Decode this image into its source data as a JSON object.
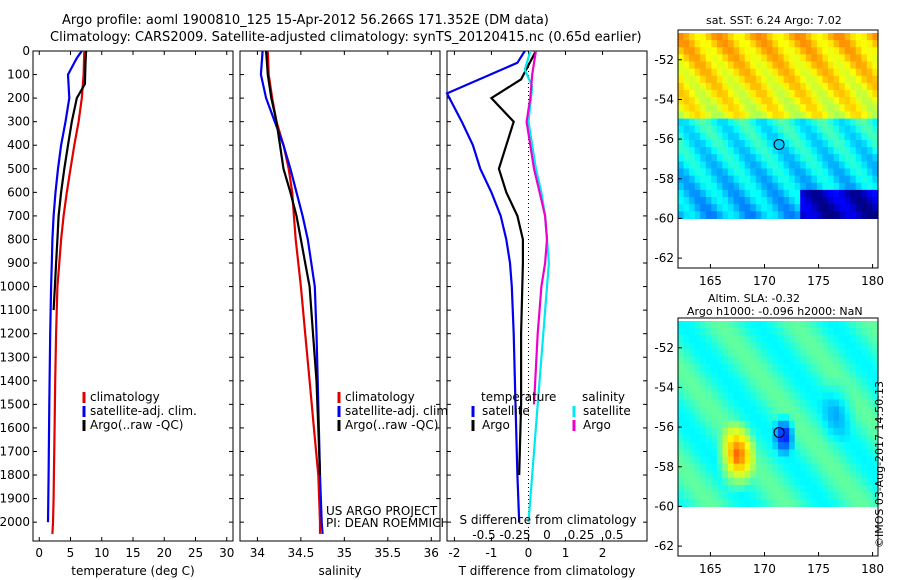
{
  "header": {
    "title_line1": "Argo profile: aoml 1900810_125 15-Apr-2012 56.266S 171.352E (DM data)",
    "title_line2": "Climatology: CARS2009. Satellite-adjusted climatology: synTS_20120415.nc (0.65d earlier)"
  },
  "colors": {
    "clim": "#e00000",
    "sat": "#0000ee",
    "argo": "#000000",
    "sal_sat": "#00e8f0",
    "sal_argo": "#ee00cc"
  },
  "chart_data": [
    {
      "type": "line",
      "id": "temperature",
      "xlabel": "temperature (deg C)",
      "ylabel": "",
      "xlim": [
        -1,
        31
      ],
      "ylim": [
        2080,
        0
      ],
      "xticks": [
        0,
        5,
        10,
        15,
        20,
        25,
        30
      ],
      "yticks": [
        0,
        100,
        200,
        300,
        400,
        500,
        600,
        700,
        800,
        900,
        1000,
        1100,
        1200,
        1300,
        1400,
        1500,
        1600,
        1700,
        1800,
        1900,
        2000
      ],
      "legend": [
        "climatology",
        "satellite-adj. clim.",
        "Argo(..raw -QC)"
      ],
      "series": [
        {
          "name": "climatology",
          "color": "#e00000",
          "x": [
            7.2,
            7.1,
            6.8,
            6.3,
            5.6,
            5.0,
            4.4,
            3.9,
            3.5,
            3.2,
            2.9,
            2.7,
            2.55,
            2.45,
            2.35,
            2.3,
            2.2,
            2.1
          ],
          "y": [
            0,
            100,
            200,
            300,
            400,
            500,
            600,
            700,
            800,
            900,
            1000,
            1200,
            1400,
            1600,
            1800,
            1900,
            2000,
            2050
          ]
        },
        {
          "name": "satellite-adj. clim.",
          "color": "#0000ee",
          "x": [
            6.8,
            6.0,
            4.6,
            4.8,
            4.2,
            3.5,
            3.0,
            2.6,
            2.3,
            2.1,
            2.0,
            1.9,
            1.75,
            1.6,
            1.5,
            1.4
          ],
          "y": [
            0,
            30,
            100,
            200,
            300,
            400,
            500,
            600,
            700,
            800,
            900,
            1000,
            1200,
            1500,
            1800,
            2000
          ]
        },
        {
          "name": "Argo(..raw -QC)",
          "color": "#000000",
          "x": [
            7.5,
            7.4,
            7.3,
            6.0,
            5.2,
            4.6,
            4.0,
            3.5,
            3.1,
            2.9,
            2.7,
            2.5,
            2.3
          ],
          "y": [
            0,
            50,
            140,
            200,
            300,
            400,
            500,
            600,
            700,
            800,
            900,
            1000,
            1100
          ]
        }
      ]
    },
    {
      "type": "line",
      "id": "salinity",
      "xlabel": "salinity",
      "xlim": [
        33.8,
        36.1
      ],
      "ylim": [
        2080,
        0
      ],
      "xticks": [
        34,
        34.5,
        35,
        35.5,
        36
      ],
      "legend": [
        "climatology",
        "satellite-adj. clim.",
        "Argo(..raw -QC)"
      ],
      "annotation": [
        "US ARGO PROJECT",
        "PI: DEAN ROEMMICH"
      ],
      "series": [
        {
          "name": "climatology",
          "color": "#e00000",
          "x": [
            34.12,
            34.13,
            34.17,
            34.22,
            34.3,
            34.36,
            34.4,
            34.42,
            34.44,
            34.47,
            34.5,
            34.55,
            34.6,
            34.65,
            34.7,
            34.72,
            34.72
          ],
          "y": [
            0,
            100,
            200,
            300,
            400,
            500,
            600,
            700,
            800,
            900,
            1000,
            1200,
            1400,
            1600,
            1800,
            2000,
            2050
          ]
        },
        {
          "name": "satellite-adj. clim.",
          "color": "#0000ee",
          "x": [
            34.06,
            34.04,
            34.1,
            34.2,
            34.3,
            34.38,
            34.45,
            34.52,
            34.58,
            34.62,
            34.66,
            34.68,
            34.7,
            34.72,
            34.74,
            34.75
          ],
          "y": [
            0,
            100,
            200,
            300,
            400,
            500,
            600,
            700,
            800,
            900,
            1000,
            1200,
            1500,
            1800,
            2000,
            2050
          ]
        },
        {
          "name": "Argo(..raw -QC)",
          "color": "#000000",
          "x": [
            34.1,
            34.12,
            34.16,
            34.22,
            34.26,
            34.3,
            34.38,
            34.45,
            34.5,
            34.55,
            34.6,
            34.64,
            34.68,
            34.7,
            34.72
          ],
          "y": [
            0,
            100,
            200,
            300,
            400,
            500,
            600,
            700,
            800,
            900,
            1000,
            1200,
            1400,
            1600,
            1800
          ]
        }
      ]
    },
    {
      "type": "line",
      "id": "difference",
      "xlabel": "T difference from climatology",
      "xlabel2": "S difference from climatology",
      "xlim": [
        -2.2,
        3.2
      ],
      "ylim": [
        2080,
        0
      ],
      "xticks": [
        -2,
        -1,
        0,
        1,
        2
      ],
      "xticks_s": [
        "-0.5",
        "-0.25",
        "0",
        "0.25",
        "0.5"
      ],
      "legend_t_head": "temperature",
      "legend_s_head": "salinity",
      "legend": [
        "satellite",
        "Argo",
        "satellite",
        "Argo"
      ],
      "series": [
        {
          "name": "satellite",
          "group": "temperature",
          "color": "#0000ee",
          "x": [
            -0.1,
            -0.3,
            -2.2,
            -1.8,
            -1.5,
            -1.3,
            -1.0,
            -0.75,
            -0.6,
            -0.5,
            -0.45,
            -0.4,
            -0.35,
            -0.3,
            -0.25
          ],
          "y": [
            0,
            50,
            180,
            300,
            400,
            500,
            600,
            700,
            800,
            900,
            1000,
            1200,
            1500,
            1800,
            2000
          ]
        },
        {
          "name": "Argo",
          "group": "temperature",
          "color": "#000000",
          "x": [
            0.2,
            -0.2,
            -0.6,
            -1.0,
            -0.4,
            -0.6,
            -0.8,
            -0.6,
            -0.3,
            -0.15,
            -0.15,
            -0.2,
            -0.2,
            -0.25
          ],
          "y": [
            0,
            120,
            160,
            200,
            300,
            400,
            500,
            600,
            700,
            800,
            900,
            1200,
            1500,
            1800
          ]
        },
        {
          "name": "satellite",
          "group": "salinity",
          "color": "#00e8f0",
          "x": [
            0.05,
            -0.1,
            0.1,
            0.0,
            0.2,
            0.35,
            0.45,
            0.5,
            0.55,
            0.5,
            0.4,
            0.25,
            0.1,
            0.0
          ],
          "y": [
            0,
            80,
            150,
            300,
            500,
            600,
            700,
            800,
            900,
            1000,
            1200,
            1500,
            1800,
            2000
          ]
        },
        {
          "name": "Argo",
          "group": "salinity",
          "color": "#ee00cc",
          "x": [
            0.2,
            0.1,
            0.05,
            -0.05,
            0.05,
            0.15,
            0.3,
            0.45,
            0.5,
            0.45,
            0.35,
            0.25,
            0.15
          ],
          "y": [
            0,
            100,
            200,
            300,
            400,
            500,
            600,
            700,
            800,
            900,
            1000,
            1200,
            1500
          ]
        }
      ]
    },
    {
      "type": "heatmap",
      "id": "sst_map",
      "title": "sat. SST: 6.24  Argo: 7.02",
      "xlim": [
        162,
        180.5
      ],
      "ylim": [
        -62.5,
        -50.5
      ],
      "xticks": [
        165,
        170,
        175,
        180
      ],
      "yticks": [
        -52,
        -54,
        -56,
        -58,
        -60,
        -62
      ],
      "marker": {
        "lon": 171.35,
        "lat": -56.27
      }
    },
    {
      "type": "heatmap",
      "id": "sla_map",
      "title": "Altim. SLA: -0.32",
      "subtitle": "Argo h1000: -0.096  h2000: NaN",
      "xlim": [
        162,
        180.5
      ],
      "ylim": [
        -62.5,
        -50.5
      ],
      "xticks": [
        165,
        170,
        175,
        180
      ],
      "yticks": [
        -52,
        -54,
        -56,
        -58,
        -60,
        -62
      ],
      "marker": {
        "lon": 171.35,
        "lat": -56.27
      }
    }
  ],
  "stamp": "©IMOS 03-Aug-2017 14:50:13"
}
